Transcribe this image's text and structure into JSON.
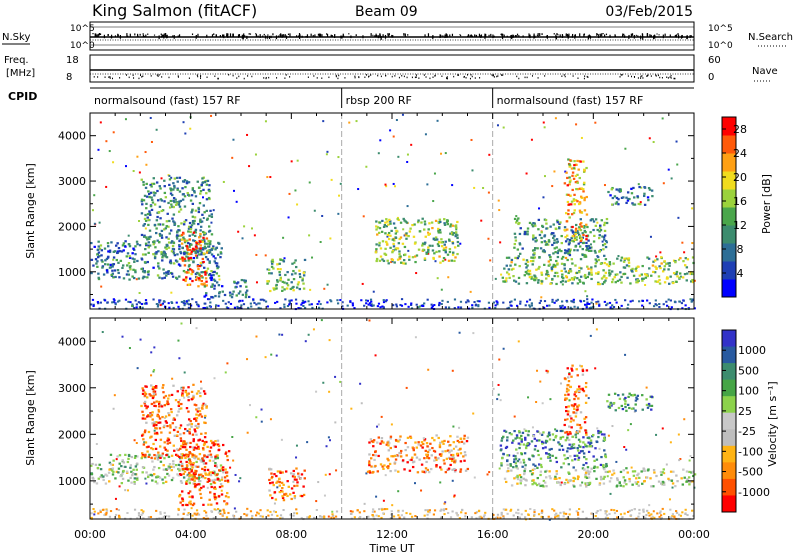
{
  "header": {
    "radar": "King Salmon (fitACF)",
    "beam": "Beam 09",
    "date": "03/Feb/2015"
  },
  "strip_labels": {
    "nsky": "N.Sky",
    "nsearch": "N.Search",
    "freq": "Freq.",
    "freq_unit": "[MHz]",
    "nave": "Nave",
    "cpid": "CPID",
    "noise_ticks_left": [
      "10^5",
      "10^0"
    ],
    "noise_ticks_right": [
      "10^5",
      "10^0"
    ],
    "freq_ticks": [
      "18",
      "8"
    ],
    "nave_ticks": [
      "60",
      "0"
    ]
  },
  "cpid_segments": [
    {
      "label": "normalsound (fast) 157 RF",
      "start_h": 0,
      "end_h": 10
    },
    {
      "label": "rbsp 200 RF",
      "start_h": 10,
      "end_h": 16
    },
    {
      "label": "normalsound (fast) 157 RF",
      "start_h": 16,
      "end_h": 24
    }
  ],
  "colors": {
    "power_scale": [
      "#0000ff",
      "#1e3fb4",
      "#2d6e96",
      "#3c8c6e",
      "#4aa64b",
      "#9bd23c",
      "#f0dc1e",
      "#ffa014",
      "#ff5a0a",
      "#ff0000"
    ],
    "velocity_scale": [
      "#3232c8",
      "#285aa0",
      "#3c8c6e",
      "#46a546",
      "#8cd24b",
      "#c8c8c8",
      "#bebebe",
      "#ffb414",
      "#ff8c0a",
      "#ff5000",
      "#ff0000"
    ]
  },
  "chart_data": [
    {
      "type": "heatmap",
      "panel": "power",
      "xlabel": "Time UT",
      "ylabel": "Slant Range [km]",
      "xticks": [
        "00:00",
        "04:00",
        "08:00",
        "12:00",
        "16:00",
        "20:00",
        "00:00"
      ],
      "xlim_hours": [
        0,
        24
      ],
      "ylim_km": [
        180,
        4500
      ],
      "yticks": [
        1000,
        2000,
        3000,
        4000
      ],
      "colorbar_label": "Power [dB]",
      "colorbar_ticks": [
        "4",
        "8",
        "12",
        "16",
        "20",
        "24",
        "28"
      ],
      "colorbar_range": [
        0,
        30
      ],
      "scatter_regions": [
        {
          "t0": 0.0,
          "t1": 5.2,
          "r0": 850,
          "r1": 1700,
          "level": 0.3
        },
        {
          "t0": 2.0,
          "t1": 4.8,
          "r0": 1400,
          "r1": 3100,
          "level": 0.35
        },
        {
          "t0": 3.6,
          "t1": 4.6,
          "r0": 700,
          "r1": 1900,
          "level": 0.85
        },
        {
          "t0": 4.5,
          "t1": 6.3,
          "r0": 450,
          "r1": 850,
          "level": 0.25
        },
        {
          "t0": 7.0,
          "t1": 8.5,
          "r0": 600,
          "r1": 1300,
          "level": 0.45
        },
        {
          "t0": 11.3,
          "t1": 14.6,
          "r0": 1200,
          "r1": 2200,
          "level": 0.5
        },
        {
          "t0": 16.3,
          "t1": 24.0,
          "r0": 750,
          "r1": 1350,
          "level": 0.5
        },
        {
          "t0": 16.8,
          "t1": 20.5,
          "r0": 1300,
          "r1": 2200,
          "level": 0.35
        },
        {
          "t0": 18.8,
          "t1": 19.7,
          "r0": 1700,
          "r1": 3500,
          "level": 0.7
        },
        {
          "t0": 20.5,
          "t1": 22.3,
          "r0": 2500,
          "r1": 2900,
          "level": 0.3
        }
      ]
    },
    {
      "type": "heatmap",
      "panel": "velocity",
      "xlabel": "Time UT",
      "ylabel": "Slant Range [km]",
      "xticks": [
        "00:00",
        "04:00",
        "08:00",
        "12:00",
        "16:00",
        "20:00",
        "00:00"
      ],
      "xlim_hours": [
        0,
        24
      ],
      "ylim_km": [
        180,
        4500
      ],
      "yticks": [
        1000,
        2000,
        3000,
        4000
      ],
      "colorbar_label": "Velocity [m s⁻¹]",
      "colorbar_ticks": [
        "1000",
        "500",
        "100",
        "25",
        "-25",
        "-100",
        "-500",
        "-1000"
      ],
      "scatter_regions": [
        {
          "t0": 0.0,
          "t1": 5.2,
          "r0": 950,
          "r1": 1600,
          "level": 0.45
        },
        {
          "t0": 2.0,
          "t1": 4.6,
          "r0": 1500,
          "r1": 3100,
          "level": 0.8
        },
        {
          "t0": 3.5,
          "t1": 5.5,
          "r0": 500,
          "r1": 1900,
          "level": 0.85
        },
        {
          "t0": 7.0,
          "t1": 8.5,
          "r0": 600,
          "r1": 1300,
          "level": 0.8
        },
        {
          "t0": 11.0,
          "t1": 15.0,
          "r0": 1200,
          "r1": 2000,
          "level": 0.75
        },
        {
          "t0": 16.2,
          "t1": 20.5,
          "r0": 1300,
          "r1": 2100,
          "level": 0.25
        },
        {
          "t0": 16.3,
          "t1": 24.0,
          "r0": 900,
          "r1": 1300,
          "level": 0.5
        },
        {
          "t0": 18.8,
          "t1": 19.7,
          "r0": 2000,
          "r1": 3500,
          "level": 0.8
        },
        {
          "t0": 20.5,
          "t1": 22.3,
          "r0": 2500,
          "r1": 2900,
          "level": 0.25
        }
      ]
    }
  ]
}
